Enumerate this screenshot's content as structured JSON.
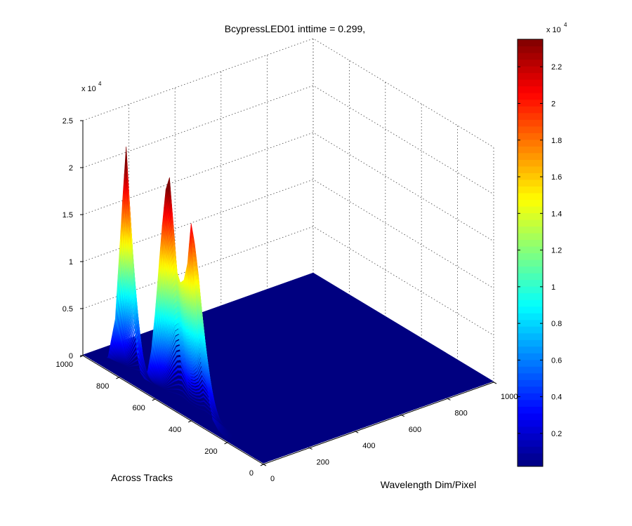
{
  "chart_data": {
    "type": "surface",
    "title": "BcypressLED01 inttime = 0.299,",
    "xlabel": "Wavelength Dim/Pixel",
    "ylabel": "Across Tracks",
    "zlabel": "",
    "z_exponent_label": "x 10",
    "z_exponent": "4",
    "xlim": [
      0,
      1000
    ],
    "ylim": [
      0,
      1000
    ],
    "zlim": [
      0,
      25000
    ],
    "x_ticks": [
      "0",
      "200",
      "400",
      "600",
      "800",
      "1000"
    ],
    "y_ticks": [
      "0",
      "200",
      "400",
      "600",
      "800",
      "1000"
    ],
    "z_ticks": [
      "0",
      "0.5",
      "1",
      "1.5",
      "2",
      "2.5"
    ],
    "grid": true,
    "colormap": "jet",
    "colorbar": {
      "ticks": [
        "0.2",
        "0.4",
        "0.6",
        "0.8",
        "1",
        "1.2",
        "1.4",
        "1.6",
        "1.8",
        "2",
        "2.2"
      ],
      "range": [
        200,
        23500
      ],
      "exponent_label": "x 10",
      "exponent": "4"
    },
    "profile_along_across_tracks": {
      "x_wavelength": 0,
      "y": [
        1000,
        950,
        900,
        860,
        820,
        800,
        780,
        760,
        740,
        720,
        700,
        680,
        660,
        640,
        620,
        600,
        580,
        560,
        540,
        520,
        500,
        480,
        460,
        440,
        420,
        400,
        380,
        360,
        340,
        320,
        300,
        280,
        250,
        200,
        100,
        0
      ],
      "z": [
        0,
        100,
        400,
        1500,
        6000,
        12500,
        19000,
        25000,
        17000,
        9000,
        4000,
        2000,
        1600,
        2600,
        5000,
        9000,
        14000,
        19000,
        23000,
        24500,
        20000,
        15000,
        14000,
        14500,
        16500,
        21000,
        19000,
        16000,
        11500,
        7000,
        3500,
        1600,
        800,
        300,
        150,
        100
      ]
    },
    "baseline_value": 100
  }
}
